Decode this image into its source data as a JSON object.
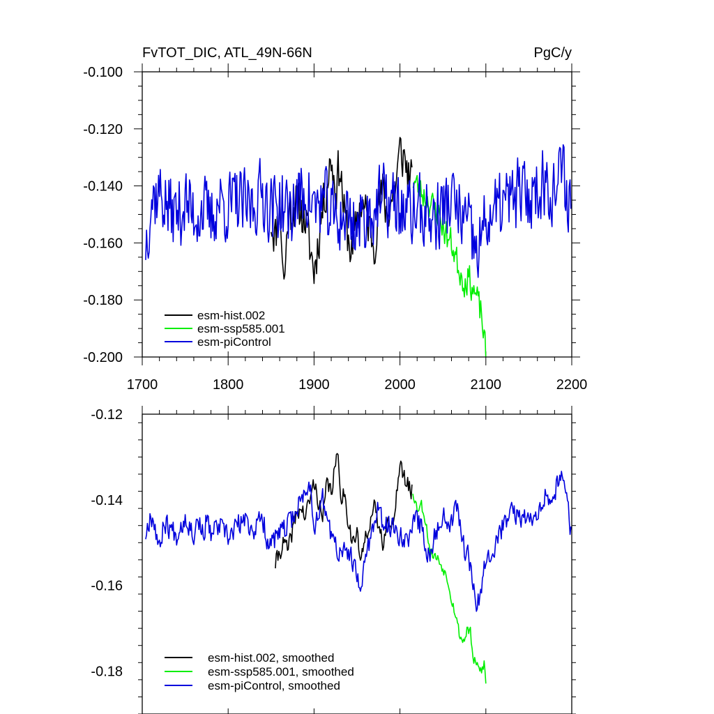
{
  "chart_data": [
    {
      "type": "line",
      "title": "FvTOT_DIC, ATL_49N-66N",
      "units": "PgC/y",
      "xlim": [
        1700,
        2200
      ],
      "ylim": [
        -0.2,
        -0.1
      ],
      "x_ticks": [
        1700,
        1800,
        1900,
        2000,
        2100,
        2200
      ],
      "x_tick_labels": [
        "1700",
        "1800",
        "1900",
        "2000",
        "2100",
        "2200"
      ],
      "y_ticks": [
        -0.1,
        -0.12,
        -0.14,
        -0.16,
        -0.18,
        -0.2
      ],
      "y_tick_labels": [
        "-0.100",
        "-0.120",
        "-0.140",
        "-0.160",
        "-0.180",
        "-0.200"
      ],
      "legend_position": "bottom-left",
      "series": [
        {
          "name": "esm-hist.002",
          "color": "#000000",
          "start_year": 1850,
          "end_year": 2014,
          "anchors": [
            [
              1850,
              -0.152
            ],
            [
              1855,
              -0.158
            ],
            [
              1860,
              -0.145
            ],
            [
              1865,
              -0.175
            ],
            [
              1870,
              -0.15
            ],
            [
              1880,
              -0.146
            ],
            [
              1890,
              -0.152
            ],
            [
              1900,
              -0.17
            ],
            [
              1910,
              -0.148
            ],
            [
              1920,
              -0.13
            ],
            [
              1925,
              -0.142
            ],
            [
              1930,
              -0.132
            ],
            [
              1935,
              -0.15
            ],
            [
              1940,
              -0.158
            ],
            [
              1945,
              -0.165
            ],
            [
              1950,
              -0.15
            ],
            [
              1955,
              -0.146
            ],
            [
              1960,
              -0.15
            ],
            [
              1965,
              -0.155
            ],
            [
              1970,
              -0.16
            ],
            [
              1975,
              -0.148
            ],
            [
              1980,
              -0.142
            ],
            [
              1985,
              -0.15
            ],
            [
              1990,
              -0.145
            ],
            [
              1995,
              -0.14
            ],
            [
              2000,
              -0.128
            ],
            [
              2005,
              -0.13
            ],
            [
              2010,
              -0.136
            ],
            [
              2014,
              -0.14
            ]
          ],
          "noise": 0.008,
          "seed": 11
        },
        {
          "name": "esm-ssp585.001",
          "color": "#00ee00",
          "start_year": 2015,
          "end_year": 2100,
          "anchors": [
            [
              2015,
              -0.138
            ],
            [
              2025,
              -0.142
            ],
            [
              2035,
              -0.146
            ],
            [
              2045,
              -0.15
            ],
            [
              2050,
              -0.154
            ],
            [
              2055,
              -0.158
            ],
            [
              2060,
              -0.16
            ],
            [
              2065,
              -0.165
            ],
            [
              2070,
              -0.17
            ],
            [
              2075,
              -0.174
            ],
            [
              2080,
              -0.172
            ],
            [
              2085,
              -0.176
            ],
            [
              2090,
              -0.18
            ],
            [
              2095,
              -0.185
            ],
            [
              2100,
              -0.2
            ]
          ],
          "noise": 0.005,
          "seed": 23
        },
        {
          "name": "esm-piControl",
          "color": "#0000dd",
          "start_year": 1704,
          "end_year": 2200,
          "anchors": [
            [
              1704,
              -0.16
            ],
            [
              1710,
              -0.145
            ],
            [
              1720,
              -0.142
            ],
            [
              1730,
              -0.148
            ],
            [
              1740,
              -0.15
            ],
            [
              1750,
              -0.146
            ],
            [
              1760,
              -0.15
            ],
            [
              1770,
              -0.148
            ],
            [
              1780,
              -0.152
            ],
            [
              1790,
              -0.145
            ],
            [
              1800,
              -0.148
            ],
            [
              1810,
              -0.145
            ],
            [
              1820,
              -0.148
            ],
            [
              1830,
              -0.146
            ],
            [
              1840,
              -0.142
            ],
            [
              1850,
              -0.148
            ],
            [
              1860,
              -0.146
            ],
            [
              1870,
              -0.15
            ],
            [
              1880,
              -0.145
            ],
            [
              1890,
              -0.142
            ],
            [
              1900,
              -0.148
            ],
            [
              1910,
              -0.145
            ],
            [
              1920,
              -0.15
            ],
            [
              1930,
              -0.152
            ],
            [
              1940,
              -0.15
            ],
            [
              1950,
              -0.155
            ],
            [
              1960,
              -0.15
            ],
            [
              1970,
              -0.148
            ],
            [
              1980,
              -0.145
            ],
            [
              1990,
              -0.146
            ],
            [
              2000,
              -0.148
            ],
            [
              2010,
              -0.15
            ],
            [
              2020,
              -0.148
            ],
            [
              2030,
              -0.15
            ],
            [
              2040,
              -0.152
            ],
            [
              2050,
              -0.148
            ],
            [
              2060,
              -0.145
            ],
            [
              2070,
              -0.15
            ],
            [
              2080,
              -0.155
            ],
            [
              2090,
              -0.165
            ],
            [
              2100,
              -0.152
            ],
            [
              2110,
              -0.15
            ],
            [
              2120,
              -0.146
            ],
            [
              2130,
              -0.145
            ],
            [
              2140,
              -0.142
            ],
            [
              2150,
              -0.145
            ],
            [
              2160,
              -0.14
            ],
            [
              2170,
              -0.138
            ],
            [
              2180,
              -0.142
            ],
            [
              2190,
              -0.135
            ],
            [
              2200,
              -0.15
            ]
          ],
          "noise": 0.012,
          "seed": 37
        }
      ]
    },
    {
      "type": "line",
      "title": "",
      "xlim": [
        1700,
        2200
      ],
      "ylim": [
        -0.19,
        -0.12
      ],
      "y_ticks": [
        -0.12,
        -0.14,
        -0.16,
        -0.18
      ],
      "y_tick_labels": [
        "-0.12",
        "-0.14",
        "-0.16",
        "-0.18"
      ],
      "legend_position": "bottom-left",
      "series": [
        {
          "name": "esm-hist.002, smoothed",
          "color": "#000000",
          "start_year": 1855,
          "end_year": 2014,
          "anchors": [
            [
              1855,
              -0.155
            ],
            [
              1860,
              -0.152
            ],
            [
              1865,
              -0.15
            ],
            [
              1870,
              -0.152
            ],
            [
              1875,
              -0.147
            ],
            [
              1880,
              -0.143
            ],
            [
              1885,
              -0.142
            ],
            [
              1890,
              -0.144
            ],
            [
              1895,
              -0.14
            ],
            [
              1900,
              -0.136
            ],
            [
              1905,
              -0.14
            ],
            [
              1910,
              -0.145
            ],
            [
              1915,
              -0.136
            ],
            [
              1920,
              -0.138
            ],
            [
              1925,
              -0.132
            ],
            [
              1928,
              -0.13
            ],
            [
              1932,
              -0.14
            ],
            [
              1935,
              -0.138
            ],
            [
              1940,
              -0.145
            ],
            [
              1945,
              -0.15
            ],
            [
              1950,
              -0.148
            ],
            [
              1955,
              -0.155
            ],
            [
              1960,
              -0.148
            ],
            [
              1965,
              -0.145
            ],
            [
              1970,
              -0.142
            ],
            [
              1975,
              -0.146
            ],
            [
              1980,
              -0.15
            ],
            [
              1985,
              -0.144
            ],
            [
              1990,
              -0.148
            ],
            [
              1995,
              -0.14
            ],
            [
              2000,
              -0.132
            ],
            [
              2005,
              -0.135
            ],
            [
              2010,
              -0.137
            ],
            [
              2014,
              -0.138
            ]
          ],
          "noise": 0.002,
          "seed": 41
        },
        {
          "name": "esm-ssp585.001, smoothed",
          "color": "#00ee00",
          "start_year": 2015,
          "end_year": 2100,
          "anchors": [
            [
              2015,
              -0.138
            ],
            [
              2020,
              -0.142
            ],
            [
              2025,
              -0.141
            ],
            [
              2030,
              -0.145
            ],
            [
              2035,
              -0.152
            ],
            [
              2040,
              -0.153
            ],
            [
              2045,
              -0.154
            ],
            [
              2050,
              -0.156
            ],
            [
              2055,
              -0.158
            ],
            [
              2060,
              -0.163
            ],
            [
              2065,
              -0.167
            ],
            [
              2070,
              -0.172
            ],
            [
              2075,
              -0.173
            ],
            [
              2078,
              -0.17
            ],
            [
              2082,
              -0.171
            ],
            [
              2085,
              -0.177
            ],
            [
              2090,
              -0.179
            ],
            [
              2095,
              -0.18
            ],
            [
              2098,
              -0.178
            ],
            [
              2100,
              -0.183
            ]
          ],
          "noise": 0.0012,
          "seed": 53
        },
        {
          "name": "esm-piControl, smoothed",
          "color": "#0000dd",
          "start_year": 1704,
          "end_year": 2200,
          "anchors": [
            [
              1704,
              -0.148
            ],
            [
              1710,
              -0.143
            ],
            [
              1715,
              -0.146
            ],
            [
              1720,
              -0.152
            ],
            [
              1725,
              -0.145
            ],
            [
              1730,
              -0.146
            ],
            [
              1740,
              -0.148
            ],
            [
              1750,
              -0.144
            ],
            [
              1760,
              -0.148
            ],
            [
              1765,
              -0.144
            ],
            [
              1770,
              -0.148
            ],
            [
              1775,
              -0.145
            ],
            [
              1780,
              -0.148
            ],
            [
              1790,
              -0.146
            ],
            [
              1800,
              -0.149
            ],
            [
              1810,
              -0.146
            ],
            [
              1820,
              -0.145
            ],
            [
              1830,
              -0.147
            ],
            [
              1840,
              -0.144
            ],
            [
              1845,
              -0.149
            ],
            [
              1850,
              -0.15
            ],
            [
              1860,
              -0.148
            ],
            [
              1870,
              -0.146
            ],
            [
              1880,
              -0.142
            ],
            [
              1890,
              -0.138
            ],
            [
              1895,
              -0.136
            ],
            [
              1900,
              -0.146
            ],
            [
              1910,
              -0.14
            ],
            [
              1920,
              -0.148
            ],
            [
              1930,
              -0.153
            ],
            [
              1940,
              -0.152
            ],
            [
              1945,
              -0.155
            ],
            [
              1950,
              -0.158
            ],
            [
              1955,
              -0.162
            ],
            [
              1960,
              -0.152
            ],
            [
              1970,
              -0.146
            ],
            [
              1975,
              -0.142
            ],
            [
              1980,
              -0.146
            ],
            [
              1990,
              -0.146
            ],
            [
              2000,
              -0.148
            ],
            [
              2010,
              -0.149
            ],
            [
              2020,
              -0.144
            ],
            [
              2030,
              -0.15
            ],
            [
              2035,
              -0.155
            ],
            [
              2040,
              -0.148
            ],
            [
              2050,
              -0.144
            ],
            [
              2060,
              -0.145
            ],
            [
              2065,
              -0.14
            ],
            [
              2070,
              -0.145
            ],
            [
              2075,
              -0.152
            ],
            [
              2080,
              -0.153
            ],
            [
              2085,
              -0.158
            ],
            [
              2090,
              -0.165
            ],
            [
              2095,
              -0.16
            ],
            [
              2100,
              -0.153
            ],
            [
              2110,
              -0.151
            ],
            [
              2120,
              -0.146
            ],
            [
              2130,
              -0.143
            ],
            [
              2140,
              -0.144
            ],
            [
              2150,
              -0.145
            ],
            [
              2160,
              -0.142
            ],
            [
              2170,
              -0.139
            ],
            [
              2180,
              -0.138
            ],
            [
              2190,
              -0.135
            ],
            [
              2195,
              -0.14
            ],
            [
              2200,
              -0.149
            ]
          ],
          "noise": 0.0025,
          "seed": 67
        }
      ]
    }
  ]
}
